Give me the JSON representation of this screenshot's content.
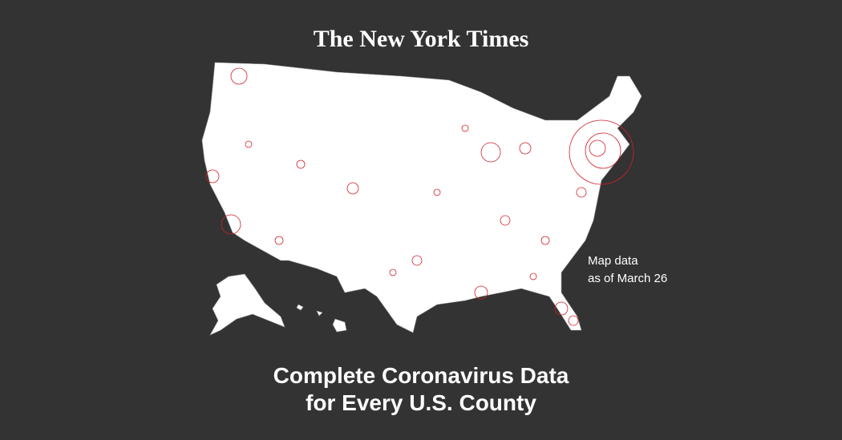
{
  "header": {
    "logo": "The New York Times"
  },
  "annotation": {
    "lines": [
      "Map data",
      "as of March 26"
    ]
  },
  "headline": {
    "lines": [
      "Complete Coronavirus Data",
      "for Every U.S. County"
    ]
  }
}
